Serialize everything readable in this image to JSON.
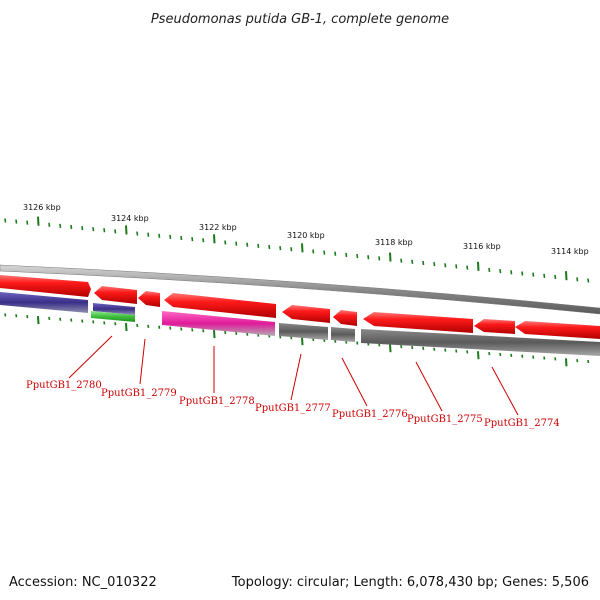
{
  "title": "Pseudomonas putida GB-1, complete genome",
  "colors": {
    "forward_gene": "#e01010",
    "reverse_blue": "#3a2f88",
    "reverse_green": "#3fbf3f",
    "reverse_magenta": "#e01a9a",
    "reverse_gray": "#606060",
    "backbone": "#8a8a8a",
    "tick": "#1a7a1a",
    "label": "#cc0000"
  },
  "tick_labels": [
    "3126 kbp",
    "3124 kbp",
    "3122 kbp",
    "3120 kbp",
    "3118 kbp",
    "3116 kbp",
    "3114 kbp"
  ],
  "genes": [
    "PputGB1_2780",
    "PputGB1_2779",
    "PputGB1_2778",
    "PputGB1_2777",
    "PputGB1_2776",
    "PputGB1_2775",
    "PputGB1_2774"
  ],
  "footer": {
    "accession": "Accession: NC_010322",
    "summary": "Topology: circular; Length: 6,078,430 bp; Genes: 5,506"
  }
}
